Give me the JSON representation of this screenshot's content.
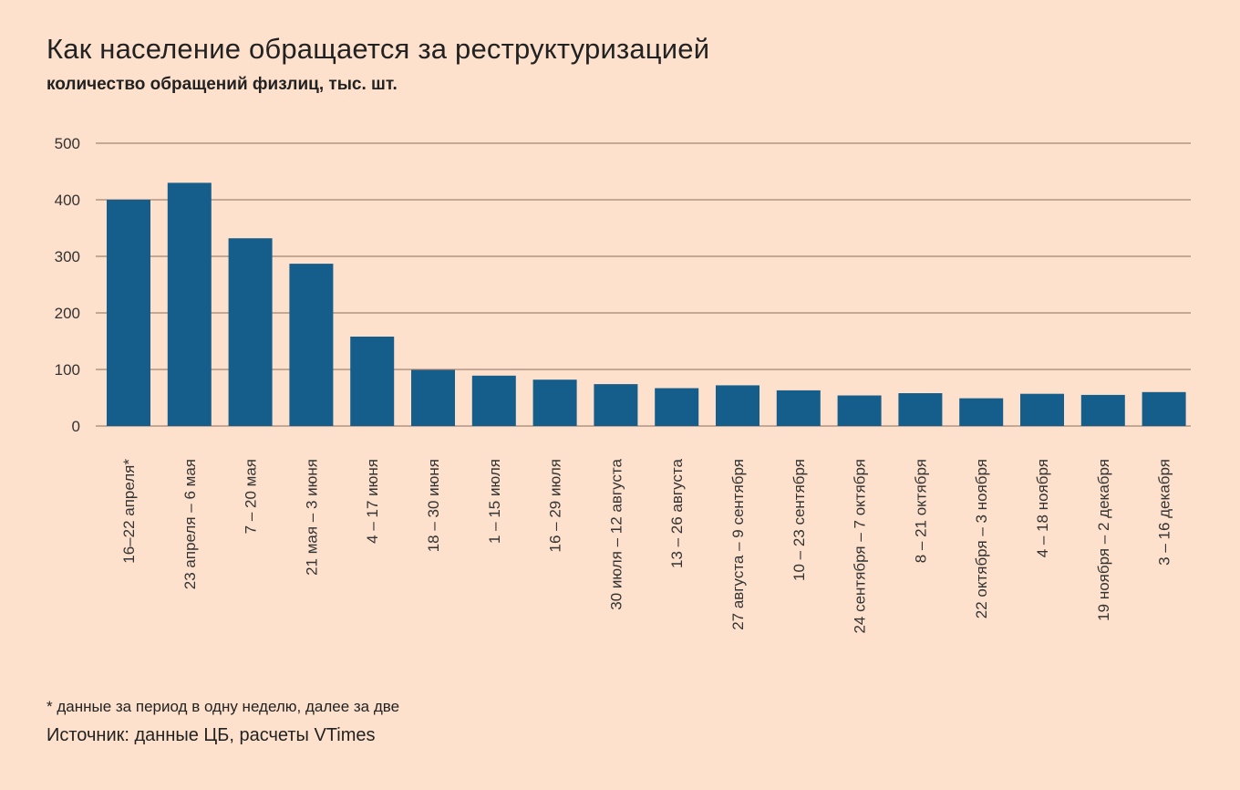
{
  "chart_data": {
    "type": "bar",
    "title": "Как население обращается за реструктуризацией",
    "subtitle": "количество обращений физлиц, тыс. шт.",
    "categories": [
      "16–22 апреля*",
      "23 апреля – 6 мая",
      "7 – 20 мая",
      "21 мая – 3 июня",
      "4 – 17 июня",
      "18 – 30 июня",
      "1 – 15 июля",
      "16 – 29 июля",
      "30 июля – 12 августа",
      "13 – 26 августа",
      "27 августа – 9 сентября",
      "10 – 23 сентября",
      "24 сентября – 7 октября",
      "8 – 21 октября",
      "22 октября – 3 ноября",
      "4 – 18 ноября",
      "19 ноября – 2 декабря",
      "3 – 16 декабря"
    ],
    "values": [
      400,
      430,
      332,
      287,
      158,
      99,
      89,
      82,
      74,
      67,
      72,
      63,
      54,
      58,
      49,
      57,
      55,
      60
    ],
    "ylim": [
      0,
      500
    ],
    "yticks": [
      0,
      100,
      200,
      300,
      400,
      500
    ],
    "grid": true,
    "bar_color": "#155e8c",
    "grid_color": "#8a6d5e",
    "xlabel": "",
    "ylabel": ""
  },
  "footnote": "* данные за период в одну неделю, далее за две",
  "source": "Источник: данные ЦБ, расчеты VTimes"
}
